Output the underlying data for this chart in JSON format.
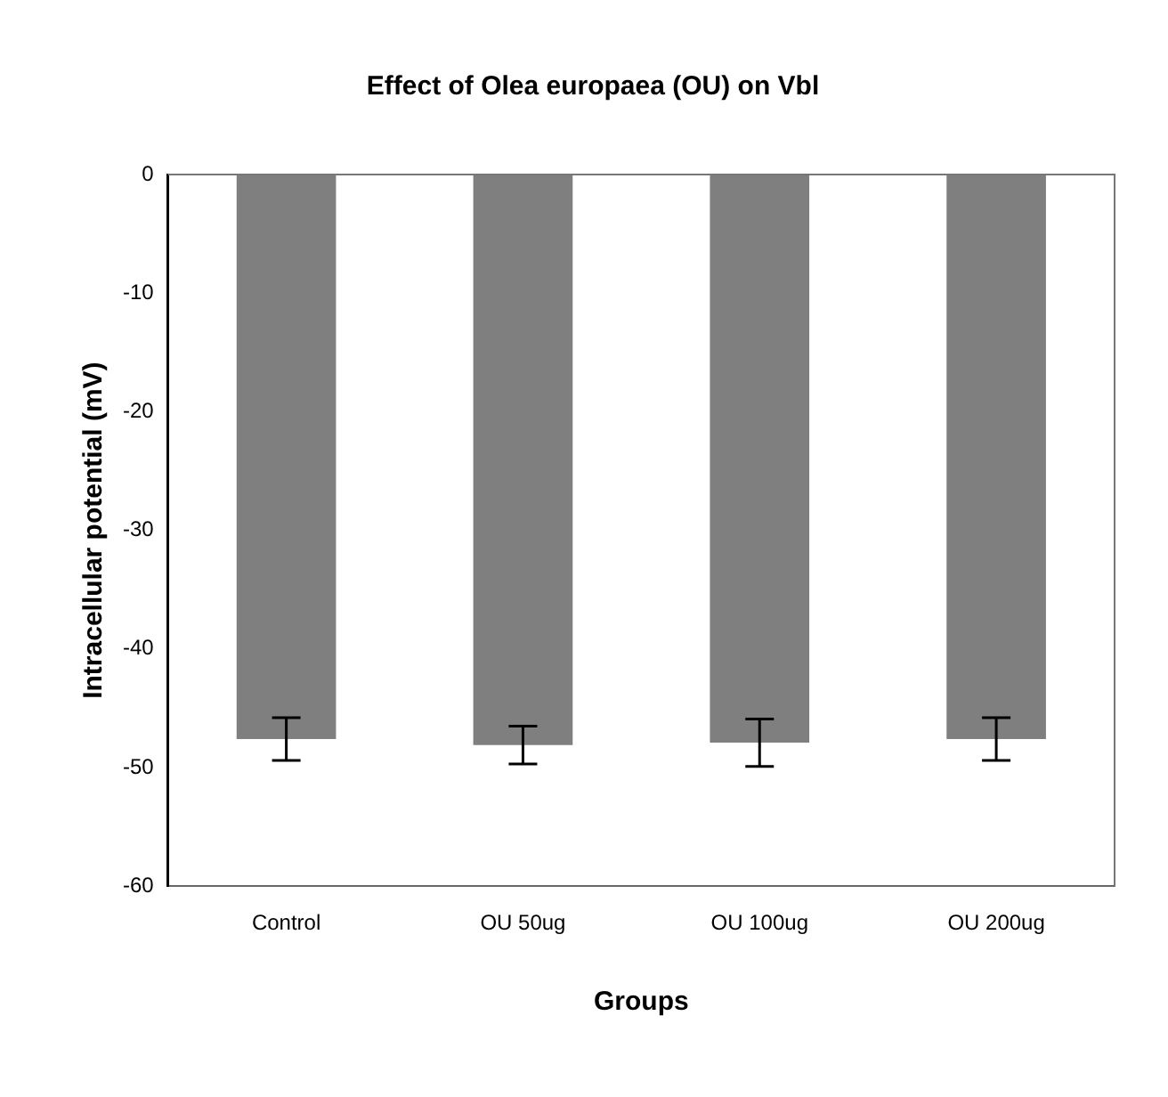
{
  "chart_data": {
    "type": "bar",
    "title": "Effect of Olea europaea (OU) on Vbl",
    "xlabel": "Groups",
    "ylabel": "Intracellular potential (mV)",
    "categories": [
      "Control",
      "OU 50ug",
      "OU 100ug",
      "OU 200ug"
    ],
    "values": [
      -47.6,
      -48.1,
      -47.9,
      -47.6
    ],
    "errors": [
      1.8,
      1.6,
      2,
      1.8
    ],
    "color": "#7f7f7f",
    "ylim": [
      -60,
      0
    ],
    "yticks": [
      -60,
      -50,
      -40,
      -30,
      -20,
      -10,
      0
    ],
    "grid": false
  }
}
